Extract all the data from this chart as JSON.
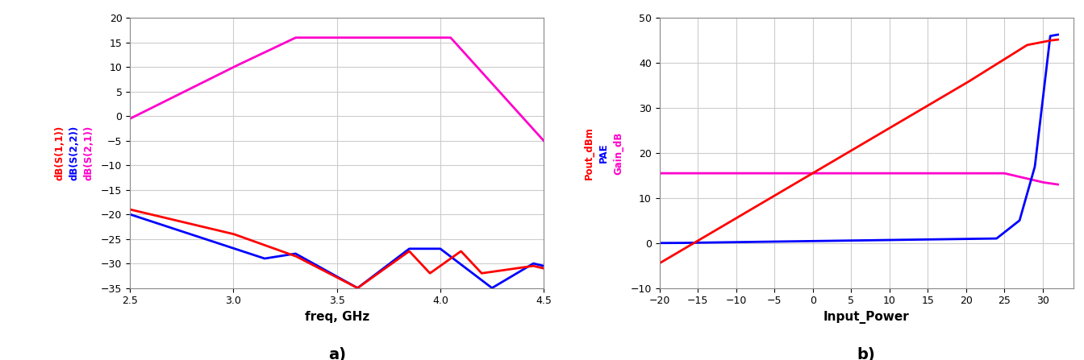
{
  "plot_a": {
    "xlabel": "freq, GHz",
    "xlim": [
      2.5,
      4.5
    ],
    "ylim": [
      -35,
      20
    ],
    "yticks": [
      -35,
      -30,
      -25,
      -20,
      -15,
      -10,
      -5,
      0,
      5,
      10,
      15,
      20
    ],
    "xticks": [
      2.5,
      3.0,
      3.5,
      4.0,
      4.5
    ],
    "label_a": "a)",
    "legend_labels": [
      "dB(S(2,1))",
      "dB(S(2,2))",
      "dB(S(1,1))"
    ],
    "legend_colors": [
      "#ff00cc",
      "#0000ff",
      "#ff0000"
    ],
    "s21_color": "#ff00cc",
    "s22_color": "#0000ff",
    "s11_color": "#ff0000"
  },
  "plot_b": {
    "xlabel": "Input_Power",
    "xlim": [
      -20,
      34
    ],
    "ylim": [
      -10,
      50
    ],
    "yticks": [
      -10,
      0,
      10,
      20,
      30,
      40,
      50
    ],
    "xticks": [
      -20,
      -15,
      -10,
      -5,
      0,
      5,
      10,
      15,
      20,
      25,
      30
    ],
    "label_b": "b)",
    "legend_labels": [
      "Gain_dB",
      "PAE",
      "Pout_dBm"
    ],
    "legend_colors": [
      "#ff00cc",
      "#0000ff",
      "#ff0000"
    ],
    "gain_color": "#ff00cc",
    "pae_color": "#0000ff",
    "pout_color": "#ff0000"
  },
  "background_color": "#ffffff",
  "grid_color": "#cccccc",
  "fig_background": "#ffffff"
}
